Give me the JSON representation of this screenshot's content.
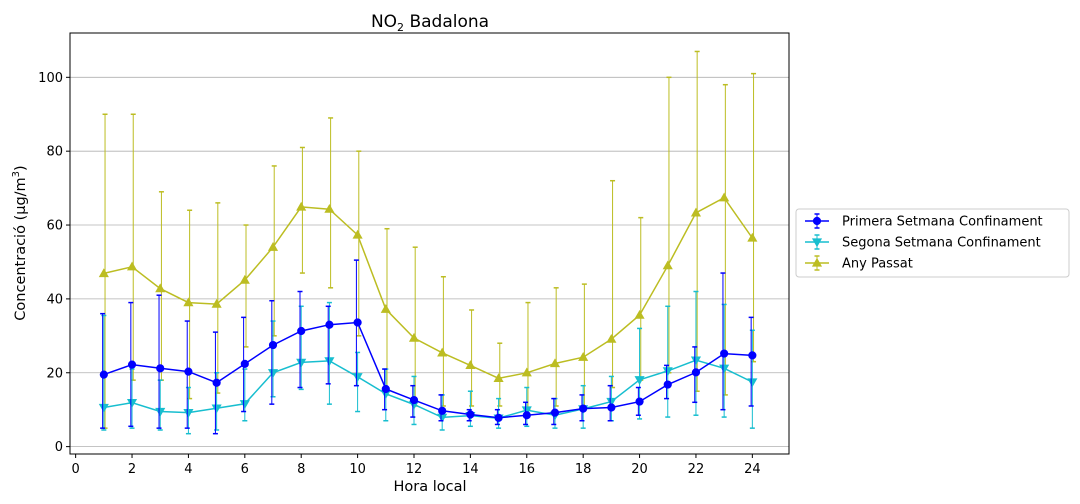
{
  "chart_data": {
    "type": "line",
    "title_main": "NO",
    "title_sub": "2",
    "title_rest": " Badalona",
    "xlabel": "Hora local",
    "ylabel_main": "Concentració (μg/m",
    "ylabel_sup": "3",
    "ylabel_end": ")",
    "xlim": [
      -0.2,
      25.3
    ],
    "ylim": [
      -2,
      112
    ],
    "x_ticks": [
      0,
      2,
      4,
      6,
      8,
      10,
      12,
      14,
      16,
      18,
      20,
      22,
      24
    ],
    "x_tick_labels": [
      "0",
      "2",
      "4",
      "6",
      "8",
      "10",
      "12",
      "14",
      "16",
      "18",
      "20",
      "22",
      "24"
    ],
    "y_ticks": [
      0,
      20,
      40,
      60,
      80,
      100
    ],
    "y_tick_labels": [
      "0",
      "20",
      "40",
      "60",
      "80",
      "100"
    ],
    "grid": "horizontal",
    "legend_position": "outside-right",
    "x": [
      1,
      2,
      3,
      4,
      5,
      6,
      7,
      8,
      9,
      10,
      11,
      12,
      13,
      14,
      15,
      16,
      17,
      18,
      19,
      20,
      21,
      22,
      23,
      24
    ],
    "series": [
      {
        "name": "Primera Setmana Confinament",
        "color": "#0000ff",
        "marker": "circle",
        "values": [
          19.5,
          22.2,
          21.2,
          20.3,
          17.3,
          22.4,
          27.5,
          31.3,
          33.0,
          33.6,
          15.6,
          12.6,
          9.7,
          8.7,
          7.8,
          8.5,
          9.2,
          10.3,
          10.6,
          12.2,
          16.8,
          20.1,
          25.2,
          24.7
        ],
        "err_low": [
          5,
          5.5,
          5,
          5,
          3.5,
          9.5,
          11.5,
          16,
          17,
          16.5,
          10,
          8,
          7,
          7,
          6,
          6,
          6,
          7,
          7,
          8.5,
          13,
          12,
          10,
          11
        ],
        "err_high": [
          36,
          39,
          41,
          34,
          31,
          35,
          39.5,
          42,
          38,
          50.5,
          21,
          16.5,
          14,
          10,
          10,
          12,
          13,
          14,
          16.5,
          16,
          22,
          27,
          47,
          35
        ]
      },
      {
        "name": "Segona Setmana Confinament",
        "color": "#17becf",
        "marker": "triangle-down",
        "values": [
          10.6,
          11.9,
          9.5,
          9.2,
          10.4,
          11.6,
          20.0,
          22.8,
          23.2,
          18.9,
          14.3,
          11.4,
          7.9,
          8.4,
          7.7,
          9.9,
          8.5,
          10.2,
          12.2,
          18.1,
          20.5,
          23.4,
          21.2,
          17.5
        ],
        "err_low": [
          4.5,
          5,
          4.5,
          3.5,
          4.5,
          7,
          13.5,
          15.5,
          11.5,
          9.5,
          7,
          6,
          4.5,
          5.5,
          5,
          5.5,
          5,
          5,
          7,
          7.5,
          8,
          8.5,
          8,
          5
        ],
        "err_high": [
          35.5,
          21,
          18,
          16,
          20,
          21,
          34,
          38,
          39,
          25.5,
          21,
          19,
          14,
          15,
          13,
          16,
          13,
          16.5,
          19,
          32,
          38,
          42,
          38.5,
          31.5
        ]
      },
      {
        "name": "Any Passat",
        "color": "#bcbd22",
        "marker": "triangle-up",
        "values": [
          46.9,
          48.7,
          42.8,
          39.0,
          38.6,
          45.1,
          54.0,
          64.9,
          64.3,
          57.3,
          37.2,
          29.4,
          25.4,
          22.0,
          18.5,
          20.0,
          22.5,
          24.2,
          29.1,
          35.6,
          49.0,
          63.3,
          67.4,
          56.5
        ],
        "err_low": [
          5,
          18,
          18,
          13,
          14.5,
          27,
          30,
          47,
          43,
          30,
          14,
          11,
          11,
          11,
          11,
          10,
          11,
          11,
          16,
          18,
          20,
          15,
          14,
          23
        ],
        "err_high": [
          90,
          90,
          69,
          64,
          66,
          60,
          76,
          81,
          89,
          80,
          59,
          54,
          46,
          37,
          28,
          39,
          43,
          44,
          72,
          62,
          100,
          107,
          98,
          101
        ]
      }
    ]
  }
}
